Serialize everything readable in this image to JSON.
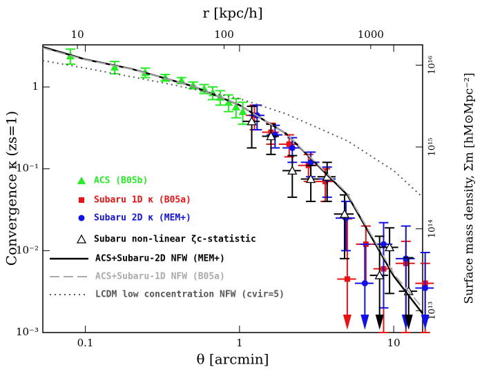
{
  "chart_data": {
    "type": "scatter",
    "xlabel": "θ [arcmin]",
    "ylabel": "Convergence κ (zs=1)",
    "x2label": "r [kpc/h]",
    "y2label": "Surface mass density, Σm [hM⊙Mpc⁻²]",
    "xscale": "log",
    "yscale": "log",
    "xlim": [
      0.053,
      15.4
    ],
    "xticks": [
      0.1,
      1,
      10
    ],
    "ylim": [
      0.001,
      3.27
    ],
    "yticks": [
      {
        "value": 0.001,
        "label": "10⁻³"
      },
      {
        "value": 0.01,
        "label": "10⁻²"
      },
      {
        "value": 0.1,
        "label": "10⁻¹"
      },
      1
    ],
    "x2lim": [
      5.81,
      2259
    ],
    "x2ticks": [
      10,
      100,
      1000
    ],
    "y2lim": [
      5400000000000.0,
      1.77e+16
    ],
    "y2ticks": [
      {
        "value": 10000000000000.0,
        "label": "10¹³"
      },
      {
        "value": 100000000000000.0,
        "label": "10¹⁴"
      },
      {
        "value": 1000000000000000.0,
        "label": "10¹⁵"
      },
      {
        "value": 1e+16,
        "label": "10¹⁶"
      }
    ],
    "legend": "lower left",
    "series": [
      {
        "name": "ACS (B05b)",
        "color": "#22ee22",
        "marker": "triangle",
        "x": [
          0.08,
          0.155,
          0.245,
          0.33,
          0.42,
          0.5,
          0.59,
          0.67,
          0.75,
          0.85,
          0.95,
          1.05
        ],
        "values": [
          2.4,
          1.75,
          1.5,
          1.3,
          1.2,
          1.05,
          0.95,
          0.85,
          0.75,
          0.65,
          0.57,
          0.5
        ],
        "yerr": [
          0.5,
          0.3,
          0.2,
          0.12,
          0.1,
          0.1,
          0.12,
          0.15,
          0.15,
          0.15,
          0.15,
          0.15
        ]
      },
      {
        "name": "Subaru 1D κ (B05a)",
        "color": "#ee1111",
        "marker": "square",
        "x": [
          1.25,
          1.6,
          2.1,
          2.8,
          3.6,
          5.0,
          6.6,
          8.6,
          12,
          16
        ],
        "values": [
          0.45,
          0.28,
          0.2,
          0.11,
          0.07,
          0.0045,
          0.012,
          0.006,
          0.007,
          0.004
        ],
        "yerr": [
          0.15,
          0.08,
          0.06,
          0.04,
          0.03,
          0.02,
          0.008,
          0.005,
          0.006,
          0.003
        ],
        "xerr": [
          0.15,
          0.2,
          0.3,
          0.4,
          0.5,
          0.7,
          0.9,
          1.2,
          1.7,
          2.2
        ]
      },
      {
        "name": "Subaru 2D κ (MEM+)",
        "color": "#1111ee",
        "marker": "circle",
        "x": [
          1.3,
          1.7,
          2.2,
          2.9,
          3.7,
          4.9,
          6.5,
          8.6,
          12,
          16
        ],
        "values": [
          0.45,
          0.26,
          0.18,
          0.12,
          0.075,
          0.025,
          0.004,
          0.012,
          0.008,
          0.0035
        ],
        "yerr": [
          0.15,
          0.08,
          0.06,
          0.04,
          0.03,
          0.015,
          0.008,
          0.01,
          0.012,
          0.006
        ],
        "xerr": [
          0.15,
          0.2,
          0.3,
          0.4,
          0.5,
          0.7,
          0.9,
          1.2,
          1.7,
          2.2
        ]
      },
      {
        "name": "Subaru non-linear ζc-statistic",
        "color": "#000000",
        "marker": "open-triangle",
        "x": [
          1.2,
          1.6,
          2.2,
          2.9,
          3.7,
          4.8,
          8.1,
          9.4,
          12.5
        ],
        "values": [
          0.38,
          0.25,
          0.095,
          0.075,
          0.08,
          0.028,
          0.005,
          0.011,
          0.0032
        ],
        "yerr": [
          0.2,
          0.1,
          0.05,
          0.035,
          0.04,
          0.02,
          0.01,
          0.008,
          0.005
        ],
        "xerr": [
          0.15,
          0.2,
          0.3,
          0.4,
          0.5,
          0.7,
          1.1,
          1.3,
          1.7
        ]
      },
      {
        "name": "ACS+Subaru-2D NFW (MEM+)",
        "color": "#000000",
        "line": "solid",
        "x": [
          0.053,
          0.1,
          0.2,
          0.5,
          1,
          2,
          5,
          10,
          15.4
        ],
        "values": [
          3.08,
          2.17,
          1.66,
          1.02,
          0.6,
          0.27,
          0.048,
          0.0049,
          0.0017
        ]
      },
      {
        "name": "ACS+Subaru-1D NFW (B05a)",
        "color": "#aaaaaa",
        "line": "dashed",
        "x": [
          0.053,
          0.1,
          0.2,
          0.5,
          1,
          2,
          5,
          10,
          15.4
        ],
        "values": [
          3.0,
          2.15,
          1.65,
          1.02,
          0.6,
          0.27,
          0.05,
          0.0052,
          0.002
        ]
      },
      {
        "name": "LCDM low concentration NFW (cvir=5)",
        "color": "#555555",
        "line": "dotted",
        "x": [
          0.053,
          0.1,
          0.3,
          1,
          2,
          5,
          10,
          15.4
        ],
        "values": [
          2.1,
          1.7,
          1.15,
          0.72,
          0.47,
          0.22,
          0.095,
          0.045
        ]
      }
    ]
  }
}
